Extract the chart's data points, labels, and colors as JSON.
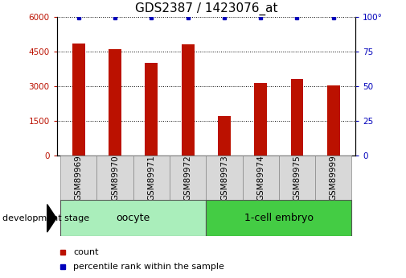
{
  "title": "GDS2387 / 1423076_at",
  "categories": [
    "GSM89969",
    "GSM89970",
    "GSM89971",
    "GSM89972",
    "GSM89973",
    "GSM89974",
    "GSM89975",
    "GSM89999"
  ],
  "counts": [
    4850,
    4600,
    4000,
    4800,
    1700,
    3150,
    3300,
    3050
  ],
  "percentiles": [
    99,
    99,
    99,
    99,
    99,
    99,
    99,
    99
  ],
  "bar_color": "#bb1100",
  "dot_color": "#0000bb",
  "ylim_left": [
    0,
    6000
  ],
  "ylim_right": [
    0,
    100
  ],
  "yticks_left": [
    0,
    1500,
    3000,
    4500,
    6000
  ],
  "ytick_labels_left": [
    "0",
    "1500",
    "3000",
    "4500",
    "6000"
  ],
  "yticks_right": [
    0,
    25,
    50,
    75,
    100
  ],
  "ytick_labels_right": [
    "0",
    "25",
    "50",
    "75",
    "100°"
  ],
  "group1_label": "oocyte",
  "group2_label": "1-cell embryo",
  "group1_color": "#aaeebb",
  "group2_color": "#44cc44",
  "xlabel_area": "development stage",
  "legend_count_label": "count",
  "legend_pct_label": "percentile rank within the sample",
  "bar_width": 0.35,
  "title_fontsize": 11,
  "tick_label_fontsize": 7.5,
  "axis_label_fontsize": 9,
  "box_facecolor": "#d8d8d8",
  "box_edgecolor": "#888888"
}
